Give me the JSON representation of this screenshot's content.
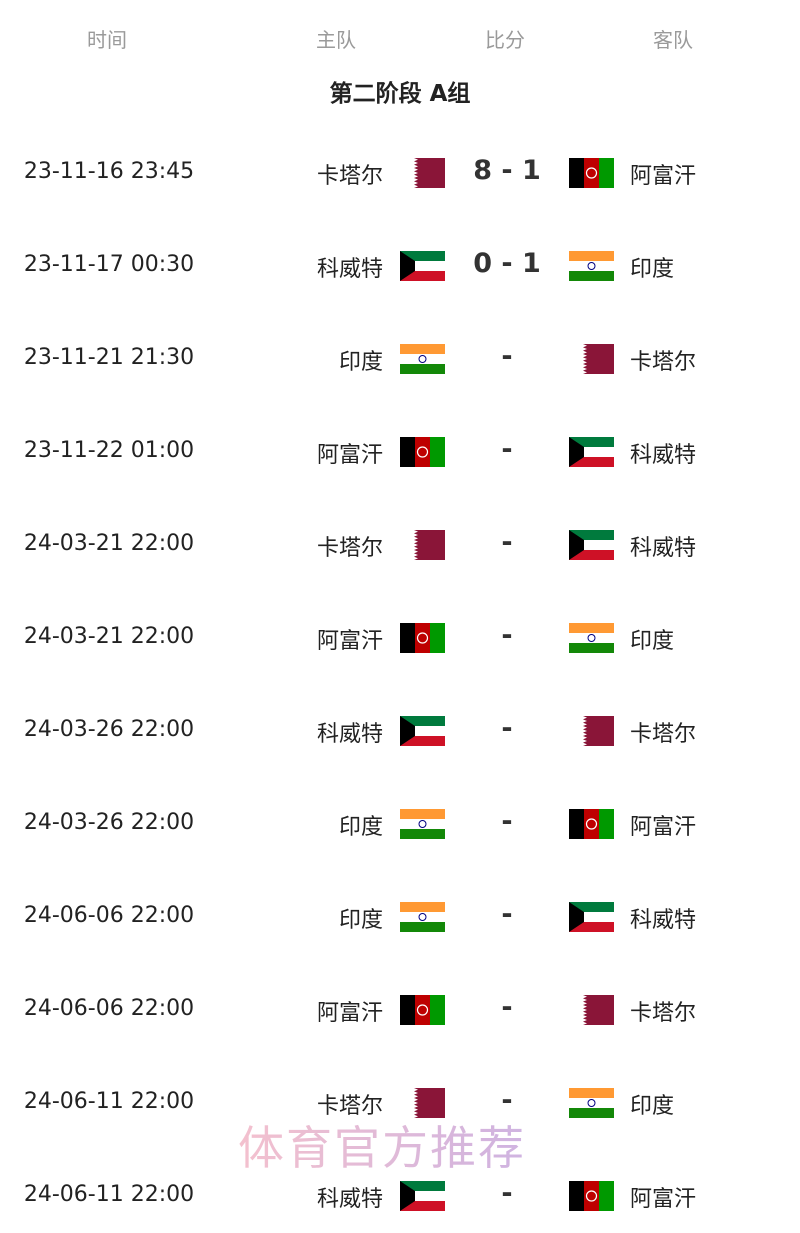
{
  "header": {
    "time": "时间",
    "home": "主队",
    "score": "比分",
    "away": "客队"
  },
  "group_title": "第二阶段 A组",
  "flag_colors": {
    "QAT": "#8a1538",
    "KUW_green": "#007a3d",
    "KUW_red": "#ce1126",
    "IND_saffron": "#ff9933",
    "IND_green": "#138808",
    "AFG_red": "#be0000",
    "AFG_green": "#009900"
  },
  "matches": [
    {
      "time": "23-11-16 23:45",
      "home": "卡塔尔",
      "home_flag": "QAT",
      "score": "8 - 1",
      "away": "阿富汗",
      "away_flag": "AFG"
    },
    {
      "time": "23-11-17 00:30",
      "home": "科威特",
      "home_flag": "KUW",
      "score": "0 - 1",
      "away": "印度",
      "away_flag": "IND"
    },
    {
      "time": "23-11-21 21:30",
      "home": "印度",
      "home_flag": "IND",
      "score": "-",
      "away": "卡塔尔",
      "away_flag": "QAT"
    },
    {
      "time": "23-11-22 01:00",
      "home": "阿富汗",
      "home_flag": "AFG",
      "score": "-",
      "away": "科威特",
      "away_flag": "KUW"
    },
    {
      "time": "24-03-21 22:00",
      "home": "卡塔尔",
      "home_flag": "QAT",
      "score": "-",
      "away": "科威特",
      "away_flag": "KUW"
    },
    {
      "time": "24-03-21 22:00",
      "home": "阿富汗",
      "home_flag": "AFG",
      "score": "-",
      "away": "印度",
      "away_flag": "IND"
    },
    {
      "time": "24-03-26 22:00",
      "home": "科威特",
      "home_flag": "KUW",
      "score": "-",
      "away": "卡塔尔",
      "away_flag": "QAT"
    },
    {
      "time": "24-03-26 22:00",
      "home": "印度",
      "home_flag": "IND",
      "score": "-",
      "away": "阿富汗",
      "away_flag": "AFG"
    },
    {
      "time": "24-06-06 22:00",
      "home": "印度",
      "home_flag": "IND",
      "score": "-",
      "away": "科威特",
      "away_flag": "KUW"
    },
    {
      "time": "24-06-06 22:00",
      "home": "阿富汗",
      "home_flag": "AFG",
      "score": "-",
      "away": "卡塔尔",
      "away_flag": "QAT"
    },
    {
      "time": "24-06-11 22:00",
      "home": "卡塔尔",
      "home_flag": "QAT",
      "score": "-",
      "away": "印度",
      "away_flag": "IND"
    },
    {
      "time": "24-06-11 22:00",
      "home": "科威特",
      "home_flag": "KUW",
      "score": "-",
      "away": "阿富汗",
      "away_flag": "AFG"
    }
  ],
  "watermark": "体育官方推荐"
}
